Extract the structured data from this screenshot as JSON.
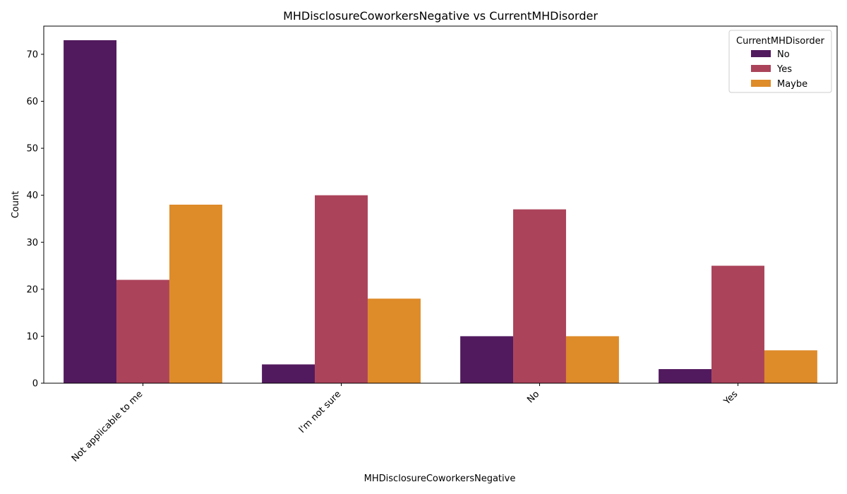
{
  "chart_data": {
    "type": "bar",
    "title": "MHDisclosureCoworkersNegative vs CurrentMHDisorder",
    "xlabel": "MHDisclosureCoworkersNegative",
    "ylabel": "Count",
    "categories": [
      "Not applicable to me",
      "I'm not sure",
      "No",
      "Yes"
    ],
    "series": [
      {
        "name": "No",
        "color": "#521a5e",
        "values": [
          73,
          4,
          10,
          3
        ]
      },
      {
        "name": "Yes",
        "color": "#ab435a",
        "values": [
          22,
          40,
          37,
          25
        ]
      },
      {
        "name": "Maybe",
        "color": "#de8b29",
        "values": [
          38,
          18,
          10,
          7
        ]
      }
    ],
    "ylim": [
      0,
      76
    ],
    "yticks": [
      0,
      10,
      20,
      30,
      40,
      50,
      60,
      70
    ],
    "grid": false,
    "legend": {
      "title": "CurrentMHDisorder",
      "position": "top-right"
    },
    "xtick_rotation": 45
  }
}
